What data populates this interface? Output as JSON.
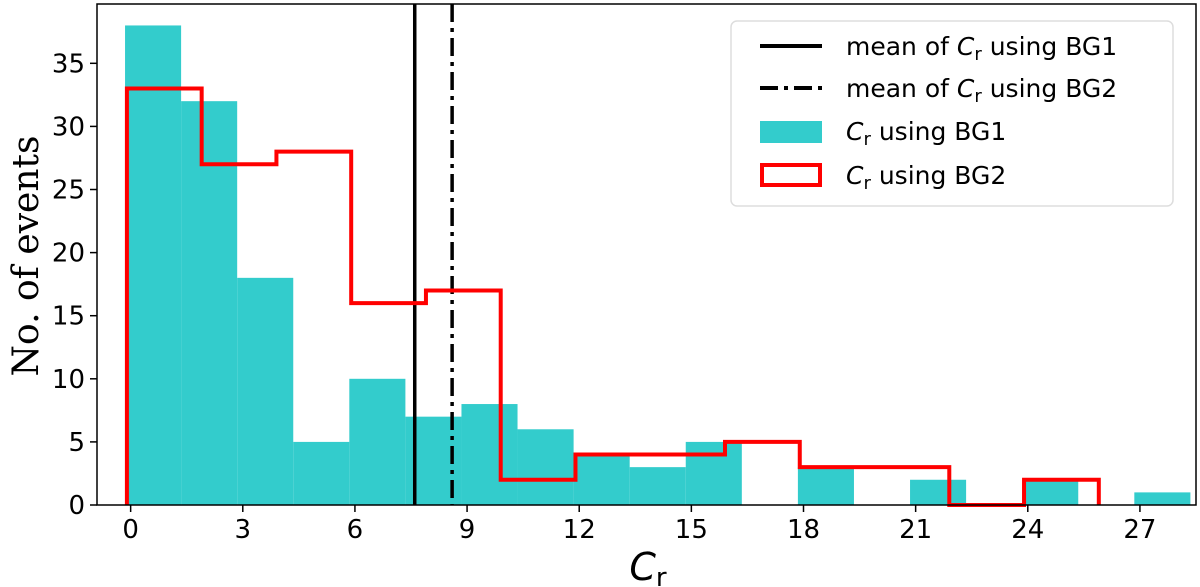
{
  "chart_data": {
    "type": "bar",
    "xlabel_main": "C",
    "xlabel_sub": "r",
    "ylabel": "No. of events",
    "xlim": [
      -0.9,
      28.5
    ],
    "ylim": [
      0,
      39.7
    ],
    "xticks": [
      0,
      3,
      6,
      9,
      12,
      15,
      18,
      21,
      24,
      27
    ],
    "yticks": [
      0,
      5,
      10,
      15,
      20,
      25,
      30,
      35
    ],
    "colors": {
      "bg1_fill": "#33cccc",
      "bg2_edge": "#ff0000",
      "mean_lines": "#000000"
    },
    "series": [
      {
        "name_main": "C",
        "name_sub": "r",
        "name_rest": " using BG1",
        "kind": "filled-histogram",
        "bin_edges": [
          -0.15,
          1.35,
          2.85,
          4.35,
          5.85,
          7.35,
          8.85,
          10.35,
          11.85,
          13.35,
          14.85,
          16.35,
          17.85,
          19.35,
          20.85,
          22.35,
          23.85,
          25.35,
          26.85,
          28.35
        ],
        "counts": [
          38,
          32,
          18,
          5,
          10,
          7,
          8,
          6,
          4,
          3,
          5,
          0,
          3,
          0,
          2,
          0,
          2,
          0,
          1
        ]
      },
      {
        "name_main": "C",
        "name_sub": "r",
        "name_rest": " using BG2",
        "kind": "step-histogram",
        "bin_edges": [
          -0.1,
          1.9,
          3.9,
          5.9,
          7.9,
          9.9,
          11.9,
          13.9,
          15.9,
          17.9,
          19.9,
          21.9,
          23.9,
          25.9
        ],
        "counts": [
          33,
          27,
          28,
          16,
          17,
          2,
          4,
          4,
          5,
          3,
          3,
          0,
          2
        ]
      }
    ],
    "mean_lines": [
      {
        "name_pre": "mean of ",
        "name_main": "C",
        "name_sub": "r",
        "name_rest": " using BG1",
        "x": 7.6,
        "style": "solid"
      },
      {
        "name_pre": "mean of ",
        "name_main": "C",
        "name_sub": "r",
        "name_rest": " using BG2",
        "x": 8.6,
        "style": "dashdot"
      }
    ],
    "legend_position": "top-right",
    "grid": false
  }
}
